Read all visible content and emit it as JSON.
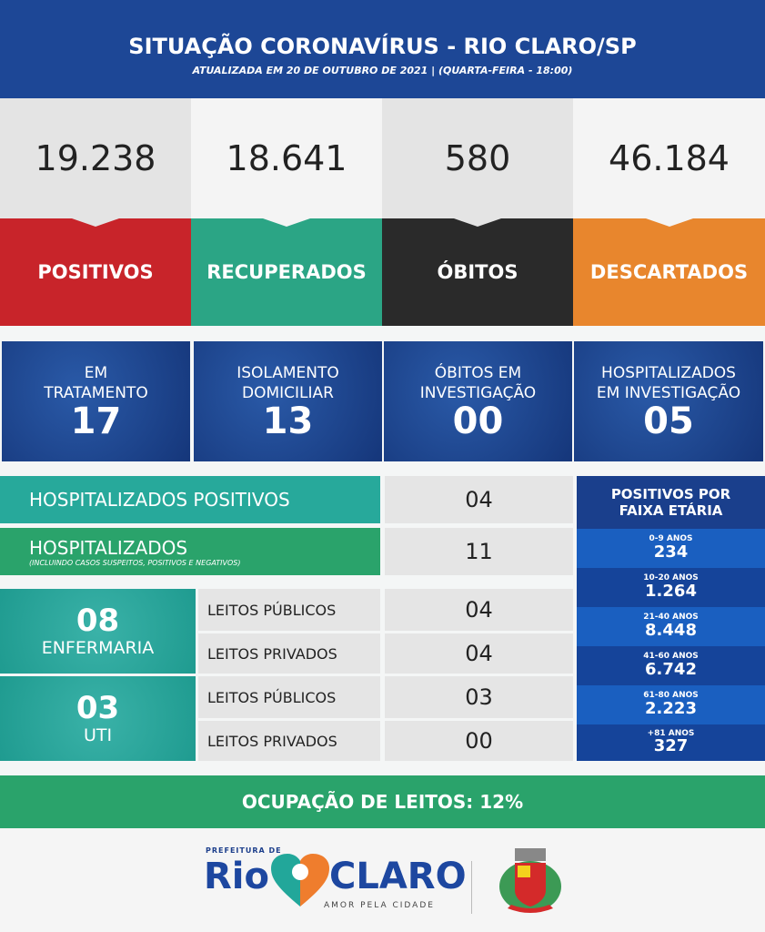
{
  "header": {
    "title": "SITUAÇÃO CORONAVÍRUS - RIO CLARO/SP",
    "subtitle": "ATUALIZADA EM 20 DE OUTUBRO DE 2021 | (QUARTA-FEIRA - 18:00)"
  },
  "cards": [
    {
      "value": "19.238",
      "label": "POSITIVOS",
      "color": "#c8242a"
    },
    {
      "value": "18.641",
      "label": "RECUPERADOS",
      "color": "#2ba585"
    },
    {
      "value": "580",
      "label": "ÓBITOS",
      "color": "#2a2a2a"
    },
    {
      "value": "46.184",
      "label": "DESCARTADOS",
      "color": "#e8862d"
    }
  ],
  "status": [
    {
      "label1": "EM",
      "label2": "TRATAMENTO",
      "value": "17"
    },
    {
      "label1": "ISOLAMENTO",
      "label2": "DOMICILIAR",
      "value": "13"
    },
    {
      "label1": "ÓBITOS EM",
      "label2": "INVESTIGAÇÃO",
      "value": "00"
    },
    {
      "label1": "HOSPITALIZADOS",
      "label2": "EM INVESTIGAÇÃO",
      "value": "05"
    }
  ],
  "hosp_pos": {
    "label": "HOSPITALIZADOS POSITIVOS",
    "value": "04"
  },
  "hosp": {
    "label": "HOSPITALIZADOS",
    "note": "(INCLUINDO CASOS SUSPEITOS, POSITIVOS E NEGATIVOS)",
    "value": "11"
  },
  "enfermaria": {
    "total": "08",
    "label": "ENFERMARIA",
    "rows": [
      {
        "label": "LEITOS PÚBLICOS",
        "value": "04"
      },
      {
        "label": "LEITOS PRIVADOS",
        "value": "04"
      }
    ]
  },
  "uti": {
    "total": "03",
    "label": "UTI",
    "rows": [
      {
        "label": "LEITOS PÚBLICOS",
        "value": "03"
      },
      {
        "label": "LEITOS PRIVADOS",
        "value": "00"
      }
    ]
  },
  "age": {
    "title": "POSITIVOS POR FAIXA ETÁRIA",
    "groups": [
      {
        "range": "0-9 ANOS",
        "value": "234"
      },
      {
        "range": "10-20 ANOS",
        "value": "1.264"
      },
      {
        "range": "21-40 ANOS",
        "value": "8.448"
      },
      {
        "range": "41-60 ANOS",
        "value": "6.742"
      },
      {
        "range": "61-80 ANOS",
        "value": "2.223"
      },
      {
        "range": "+81 ANOS",
        "value": "327"
      }
    ]
  },
  "ocupacao": "OCUPAÇÃO DE LEITOS: 12%",
  "footer": {
    "prefeitura": "PREFEITURA DE",
    "rio": "Rio",
    "claro": "CLARO",
    "slogan": "AMOR PELA CIDADE"
  }
}
